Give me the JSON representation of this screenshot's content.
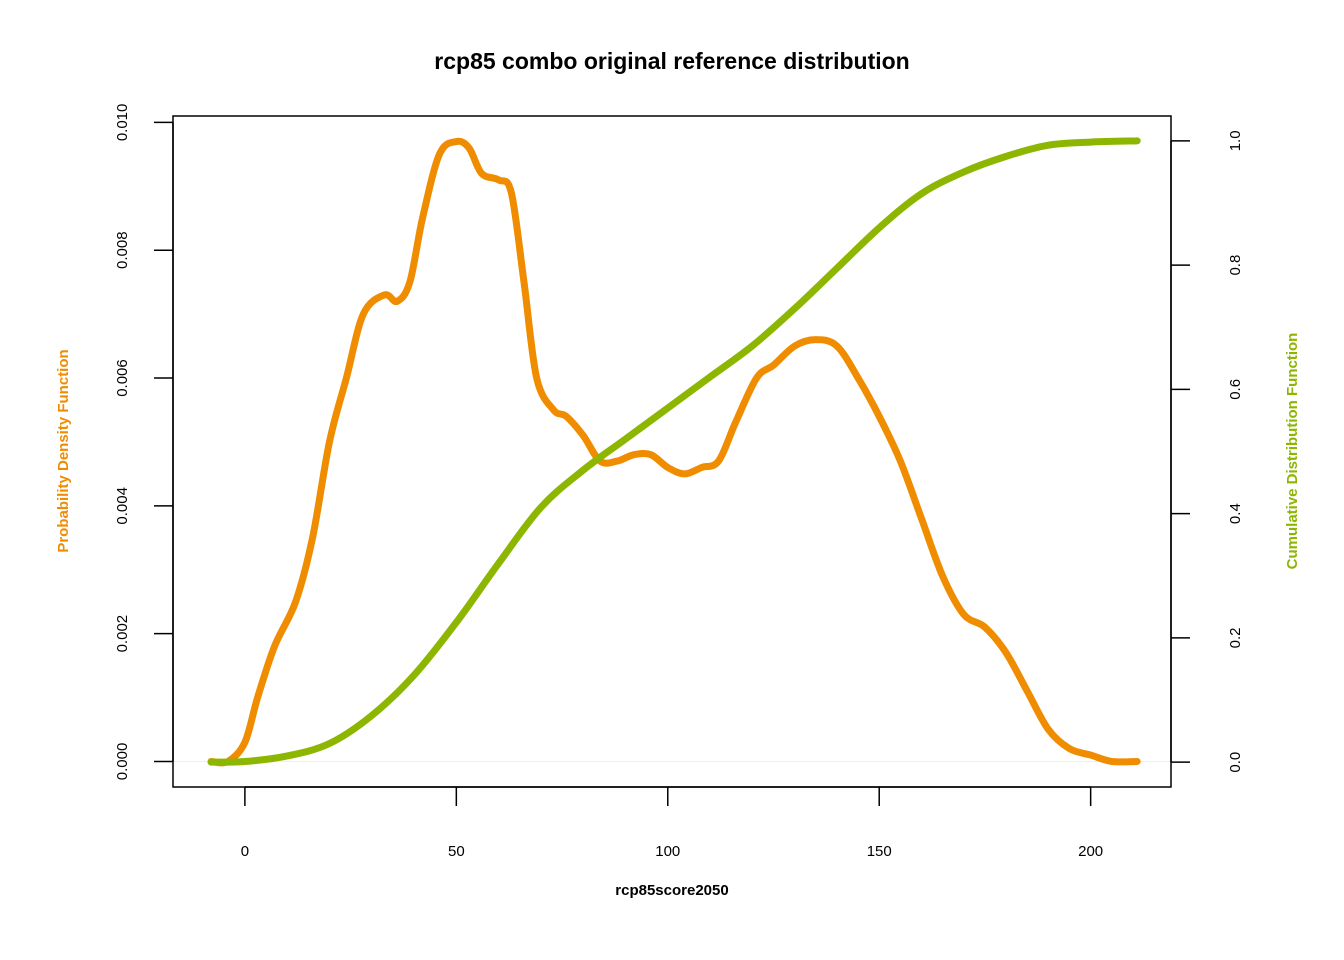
{
  "chart_data": {
    "type": "line",
    "title": "rcp85 combo original reference distribution",
    "xlabel": "rcp85score2050",
    "ylabel_left": "Probability Density Function",
    "ylabel_right": "Cumulative Distribution Function",
    "xlim": [
      -17,
      219
    ],
    "ylim_left": [
      -0.0004,
      0.0101
    ],
    "ylim_right": [
      -0.04,
      1.04
    ],
    "x_ticks": [
      0,
      50,
      100,
      150,
      200
    ],
    "x_tick_labels": [
      "0",
      "50",
      "100",
      "150",
      "200"
    ],
    "y_left_ticks": [
      0,
      0.002,
      0.004,
      0.006,
      0.008,
      0.01
    ],
    "y_left_tick_labels": [
      "0.000",
      "0.002",
      "0.004",
      "0.006",
      "0.008",
      "0.010"
    ],
    "y_right_ticks": [
      0,
      0.2,
      0.4,
      0.6,
      0.8,
      1.0
    ],
    "y_right_tick_labels": [
      "0.0",
      "0.2",
      "0.4",
      "0.6",
      "0.8",
      "1.0"
    ],
    "colors": {
      "pdf": "#f08c00",
      "cdf": "#8db600",
      "baseline": "#eeeeee",
      "axis": "#000000"
    },
    "grid": false,
    "series": [
      {
        "name": "Probability Density Function",
        "axis": "left",
        "x": [
          -8,
          -4,
          0,
          3,
          7,
          12,
          16,
          20,
          24,
          28,
          33,
          36,
          39,
          42,
          46,
          50,
          53,
          56,
          60,
          63,
          66,
          69,
          73,
          76,
          80,
          84,
          88,
          92,
          96,
          100,
          104,
          108,
          112,
          116,
          121,
          125,
          130,
          135,
          140,
          145,
          150,
          155,
          160,
          165,
          170,
          175,
          180,
          185,
          190,
          195,
          200,
          205,
          211
        ],
        "values": [
          0.0,
          0.0,
          0.0003,
          0.001,
          0.0018,
          0.0025,
          0.0035,
          0.005,
          0.006,
          0.007,
          0.0073,
          0.0072,
          0.0075,
          0.0085,
          0.0095,
          0.0097,
          0.0096,
          0.0092,
          0.0091,
          0.0089,
          0.0075,
          0.006,
          0.0055,
          0.0054,
          0.0051,
          0.0047,
          0.0047,
          0.0048,
          0.0048,
          0.0046,
          0.0045,
          0.0046,
          0.0047,
          0.0053,
          0.006,
          0.0062,
          0.0065,
          0.0066,
          0.0065,
          0.006,
          0.0054,
          0.0047,
          0.0038,
          0.0029,
          0.0023,
          0.0021,
          0.0017,
          0.0011,
          0.0005,
          0.0002,
          0.0001,
          0.0,
          0.0
        ]
      },
      {
        "name": "Cumulative Distribution Function",
        "axis": "right",
        "x": [
          -8,
          0,
          10,
          20,
          30,
          40,
          50,
          60,
          70,
          80,
          90,
          100,
          110,
          120,
          130,
          140,
          150,
          160,
          170,
          180,
          190,
          200,
          211
        ],
        "values": [
          0.0,
          0.001,
          0.01,
          0.03,
          0.075,
          0.14,
          0.225,
          0.32,
          0.41,
          0.47,
          0.52,
          0.57,
          0.62,
          0.67,
          0.73,
          0.795,
          0.86,
          0.915,
          0.95,
          0.975,
          0.993,
          0.998,
          1.0
        ]
      }
    ]
  }
}
